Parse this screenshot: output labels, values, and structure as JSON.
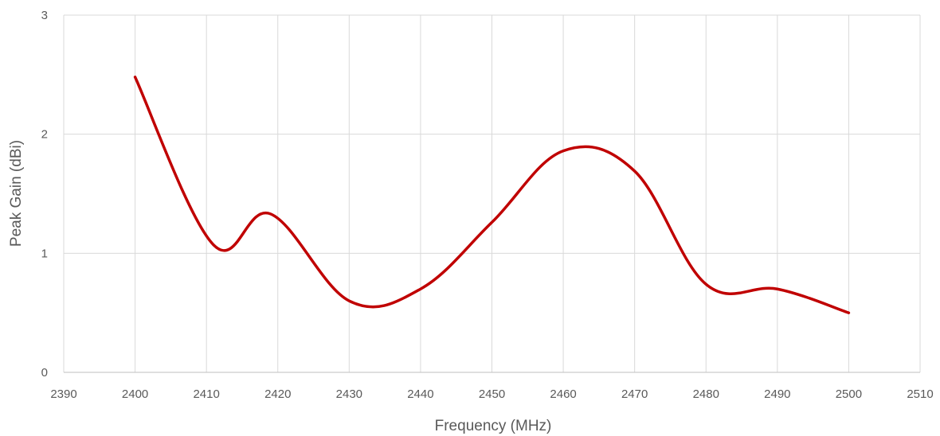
{
  "chart_data": {
    "type": "line",
    "title": "",
    "xlabel": "Frequency (MHz)",
    "ylabel": "Peak Gain (dBi)",
    "xlim": [
      2390,
      2510
    ],
    "ylim": [
      0,
      3
    ],
    "x_ticks": [
      2390,
      2400,
      2410,
      2420,
      2430,
      2440,
      2450,
      2460,
      2470,
      2480,
      2490,
      2500,
      2510
    ],
    "y_ticks": [
      0,
      1,
      2,
      3
    ],
    "grid": true,
    "legend": "none",
    "series": [
      {
        "color": "#c00000",
        "smooth": true,
        "x": [
          2400,
          2411,
          2419,
          2430,
          2440,
          2450,
          2460,
          2470,
          2480,
          2490,
          2500
        ],
        "y": [
          2.48,
          1.07,
          1.33,
          0.6,
          0.7,
          1.26,
          1.86,
          1.69,
          0.74,
          0.7,
          0.5
        ]
      }
    ]
  }
}
